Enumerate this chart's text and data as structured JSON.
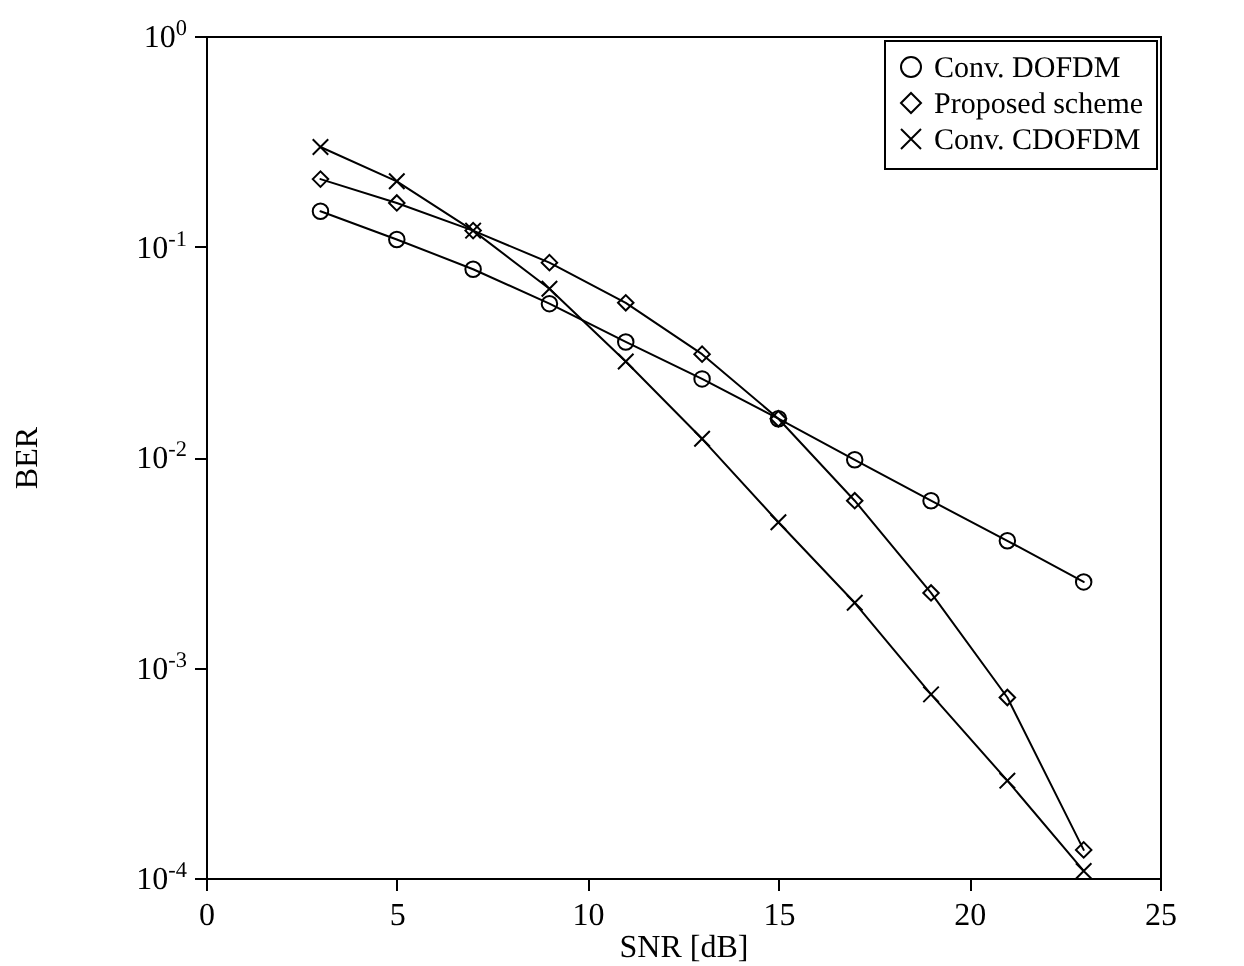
{
  "chart_data": {
    "type": "line",
    "xlabel": "SNR [dB]",
    "ylabel": "BER",
    "log": true,
    "grid": false,
    "legend": "top right",
    "line_style": "solid",
    "x": [
      3,
      5,
      7,
      9,
      11,
      13,
      15,
      17,
      19,
      21,
      23
    ],
    "xlim": [
      0,
      25
    ],
    "xticks": [
      0,
      5,
      10,
      15,
      20,
      25
    ],
    "ylim": [
      0.0001,
      1
    ],
    "yticks": [
      {
        "value": 1,
        "label": "10$^{0}$"
      },
      {
        "value": 0.1,
        "label": "10$^{-1}$"
      },
      {
        "value": 0.01,
        "label": "10$^{-2}$"
      },
      {
        "value": 0.001,
        "label": "10$^{-3}$"
      },
      {
        "value": 0.0001,
        "label": "10$^{-4}$"
      }
    ],
    "series": [
      {
        "name": "Conv. DOFDM",
        "color": "#000000",
        "marker": "circle",
        "values": [
          0.147,
          0.108,
          0.078,
          0.0535,
          0.0352,
          0.0235,
          0.0152,
          0.0097,
          0.0062,
          0.004,
          0.00255
        ]
      },
      {
        "name": "Proposed scheme",
        "color": "#000000",
        "marker": "diamond",
        "values": [
          0.209,
          0.161,
          0.119,
          0.0838,
          0.054,
          0.0308,
          0.0152,
          0.0062,
          0.00226,
          0.00072,
          0.000136
        ]
      },
      {
        "name": "Conv. CDOFDM",
        "color": "#000000",
        "marker": "cross",
        "values": [
          0.297,
          0.204,
          0.119,
          0.063,
          0.0284,
          0.0122,
          0.0049,
          0.00203,
          0.000745,
          0.00029,
          0.000108
        ]
      }
    ]
  }
}
